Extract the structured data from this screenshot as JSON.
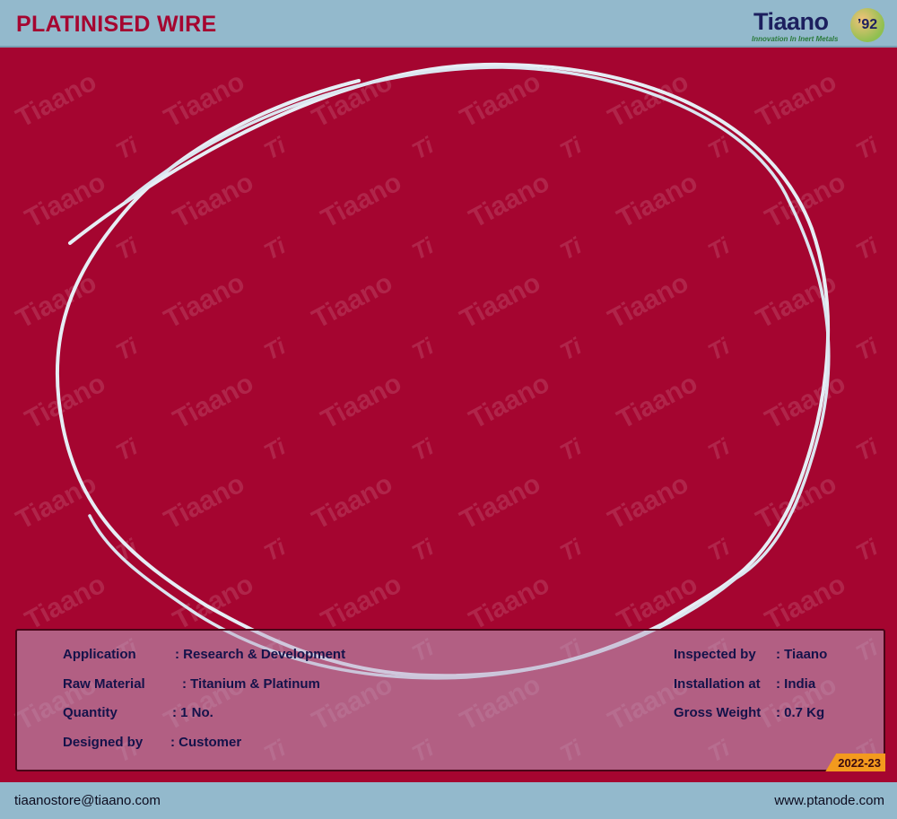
{
  "header": {
    "title": "PLATINISED WIRE",
    "logo": {
      "name": "Tiaano",
      "tagline": "Innovation In Inert Metals",
      "badge": "since '92"
    }
  },
  "watermark": {
    "text": "Tiaano",
    "short": "Ti"
  },
  "details": {
    "left": [
      {
        "label": "Application",
        "value": ": Research & Development"
      },
      {
        "label": "Raw Material",
        "value": ": Titanium & Platinum"
      },
      {
        "label": "Quantity",
        "value": ": 1 No."
      },
      {
        "label": "Designed by",
        "value": ": Customer"
      }
    ],
    "right": [
      {
        "label": "Inspected by",
        "value": ": Tiaano"
      },
      {
        "label": "Installation at",
        "value": ": India"
      },
      {
        "label": "Gross Weight",
        "value": ": 0.7 Kg"
      }
    ],
    "year": "2022-23"
  },
  "footer": {
    "email": "tiaanostore@tiaano.com",
    "website": "www.ptanode.com"
  },
  "colors": {
    "brand_red": "#a50530",
    "header_blue": "#93b9cc",
    "badge_orange": "#f39a1e",
    "text_navy": "#14124a"
  }
}
